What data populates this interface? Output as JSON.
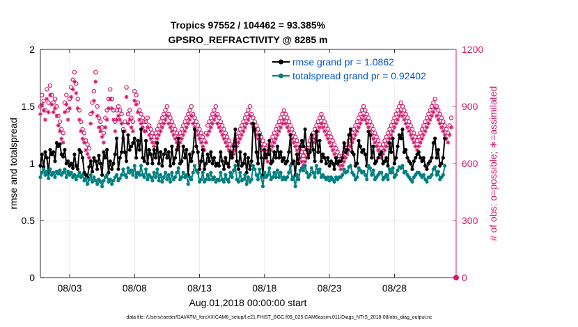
{
  "chart_data": {
    "type": "line",
    "title_line1": "Tropics 97552 / 104462 = 93.385%",
    "title_line2": "GPSRO_REFRACTIVITY @ 8285 m",
    "xlabel": "Aug.01,2018 00:00:00 start",
    "ylabel_left": "rmse and totalspread",
    "ylabel_right": "# of obs: o=possible; ∗=assimilated",
    "footer": "data file: /Users/raeder/DAI/ATM_forcXX/CAM6_setup/f.e21.FHIST_BGC.f09_025.CAM6assim.011/Diags_NTrS_2018-08/obs_diag_output.nc",
    "xlim": [
      0.75,
      32.75
    ],
    "ylim_left": [
      0,
      2
    ],
    "ylim_right": [
      0,
      1200
    ],
    "x_ticks": [
      3,
      8,
      13,
      18,
      23,
      28
    ],
    "x_tick_labels": [
      "08/03",
      "08/08",
      "08/13",
      "08/18",
      "08/23",
      "08/28"
    ],
    "y_ticks_left": [
      0,
      0.5,
      1,
      1.5,
      2
    ],
    "y_tick_labels_left": [
      "0",
      "0.5",
      "1",
      "1.5",
      "2"
    ],
    "y_ticks_right": [
      0,
      300,
      600,
      900,
      1200
    ],
    "y_tick_labels_right": [
      "0",
      "300",
      "600",
      "900",
      "1200"
    ],
    "legend_position": "top-right",
    "colors": {
      "rmse": "#000000",
      "spread": "#008080",
      "obs": "#d6186b",
      "legend_text": "#0055d4",
      "grid": "#e6e6e6"
    },
    "series": [
      {
        "name": "rmse grand pr = 1.0862",
        "axis": "left",
        "values": [
          0.98,
          1.08,
          0.97,
          1.1,
          1.05,
          0.92,
          1.12,
          1.08,
          1.1,
          1.02,
          1.18,
          1.15,
          1.17,
          1.08,
          1.06,
          1.12,
          1.0,
          1.02,
          0.98,
          1.0,
          0.96,
          1.08,
          0.98,
          0.95,
          1.12,
          1.1,
          1.05,
          0.92,
          0.9,
          0.88,
          0.97,
          1.02,
          0.93,
          1.05,
          1.02,
          0.95,
          1.07,
          1.0,
          0.9,
          1.1,
          1.05,
          1.12,
          0.92,
          1.02,
          0.95,
          1.0,
          1.08,
          1.22,
          0.95,
          1.05,
          1.1,
          1.28,
          1.1,
          1.02,
          1.25,
          1.12,
          1.15,
          1.18,
          1.22,
          1.05,
          1.2,
          1.12,
          1.3,
          1.05,
          1.02,
          1.2,
          1.0,
          1.12,
          1.08,
          1.0,
          1.12,
          1.05,
          1.18,
          1.0,
          1.1,
          0.98,
          1.08,
          1.12,
          1.05,
          1.1,
          0.98,
          1.15,
          1.0,
          1.05,
          1.12,
          1.22,
          1.0,
          1.02,
          1.15,
          1.05,
          1.12,
          0.9,
          1.08,
          1.02,
          1.1,
          1.3,
          1.15,
          1.1,
          0.95,
          1.02,
          1.12,
          0.95,
          1.0,
          1.08,
          1.02,
          1.1,
          1.0,
          1.05,
          0.98,
          1.0,
          0.98,
          1.1,
          1.02,
          0.95,
          1.05,
          1.0,
          0.97,
          1.1,
          1.05,
          1.15,
          1.3,
          1.02,
          0.95,
          1.1,
          0.98,
          1.0,
          1.08,
          0.92,
          1.05,
          0.95,
          1.02,
          1.35,
          1.3,
          1.1,
          1.0,
          1.25,
          1.05,
          0.9,
          1.12,
          1.05,
          1.08,
          1.2,
          1.0,
          1.02,
          1.1,
          1.05,
          1.15,
          1.05,
          1.1,
          1.02,
          1.05,
          1.0,
          1.02,
          1.1,
          1.25,
          1.0,
          1.02,
          0.9,
          1.08,
          1.0,
          1.15,
          1.2,
          1.15,
          1.3,
          1.12,
          1.05,
          1.1,
          1.25,
          1.12,
          1.02,
          1.28,
          1.1,
          1.2,
          1.02,
          1.08,
          1.05,
          1.0,
          1.05,
          0.98,
          1.02,
          1.0,
          0.95,
          1.05,
          1.0,
          1.02,
          1.02,
          1.05,
          1.18,
          1.1,
          1.12,
          1.25,
          1.3,
          1.1,
          1.08,
          0.98,
          1.0,
          1.2,
          1.15,
          1.1,
          1.12,
          1.08,
          0.98,
          1.28,
          1.25,
          1.05,
          1.15,
          1.0,
          1.02,
          1.05,
          1.08,
          1.1,
          1.0,
          1.02,
          1.05,
          0.98,
          1.18,
          1.1,
          1.22,
          1.0,
          1.05,
          1.15,
          1.25,
          1.22,
          1.3,
          1.1,
          1.12,
          1.05,
          1.02,
          1.0,
          0.95,
          1.02,
          1.05,
          1.08,
          1.1,
          1.05,
          1.02,
          1.05,
          0.98,
          0.95,
          1.0,
          1.02,
          1.05,
          1.18,
          1.22,
          1.05,
          1.12,
          0.98,
          1.0,
          1.05,
          1.22
        ]
      },
      {
        "name": "totalspread grand pr = 0.92402",
        "axis": "left",
        "values": [
          0.88,
          0.92,
          0.95,
          0.9,
          0.93,
          0.87,
          0.95,
          0.9,
          0.92,
          0.88,
          0.93,
          0.91,
          0.94,
          0.9,
          0.92,
          0.95,
          0.88,
          0.93,
          0.9,
          0.92,
          0.88,
          0.9,
          0.86,
          0.89,
          0.92,
          0.88,
          0.9,
          0.85,
          0.87,
          0.82,
          0.86,
          0.9,
          0.84,
          0.88,
          0.85,
          0.82,
          0.86,
          0.84,
          0.8,
          0.85,
          0.88,
          0.9,
          0.84,
          0.86,
          0.82,
          0.85,
          0.88,
          0.9,
          0.85,
          0.87,
          0.9,
          0.95,
          0.9,
          0.88,
          0.96,
          0.92,
          0.94,
          0.9,
          0.98,
          0.88,
          0.92,
          0.9,
          0.98,
          0.9,
          0.88,
          0.95,
          0.86,
          0.9,
          0.88,
          0.85,
          0.92,
          0.88,
          0.95,
          0.85,
          0.9,
          0.84,
          0.88,
          0.92,
          0.86,
          0.9,
          0.84,
          0.92,
          0.86,
          0.88,
          0.92,
          0.96,
          0.86,
          0.88,
          0.92,
          0.88,
          0.9,
          0.82,
          0.88,
          0.86,
          0.92,
          0.98,
          0.94,
          0.92,
          0.84,
          0.86,
          0.92,
          0.84,
          0.86,
          0.9,
          0.86,
          0.92,
          0.86,
          0.88,
          0.84,
          0.86,
          0.85,
          0.92,
          0.86,
          0.84,
          0.9,
          0.86,
          0.84,
          0.92,
          0.88,
          0.94,
          0.98,
          0.86,
          0.84,
          0.92,
          0.85,
          0.86,
          0.9,
          0.82,
          0.88,
          0.84,
          0.86,
          0.98,
          0.95,
          0.9,
          0.86,
          0.95,
          0.88,
          0.8,
          0.92,
          0.88,
          0.9,
          0.96,
          0.86,
          0.88,
          0.92,
          0.88,
          0.94,
          0.88,
          0.92,
          0.86,
          0.88,
          0.86,
          0.88,
          0.92,
          0.98,
          0.86,
          0.88,
          0.8,
          0.9,
          0.86,
          0.94,
          0.96,
          0.94,
          0.98,
          0.92,
          0.88,
          0.9,
          0.96,
          0.92,
          0.88,
          0.98,
          0.92,
          0.95,
          0.88,
          0.9,
          0.88,
          0.86,
          0.88,
          0.85,
          0.88,
          0.86,
          0.84,
          0.88,
          0.86,
          0.88,
          0.88,
          0.9,
          0.95,
          0.92,
          0.93,
          0.97,
          0.98,
          0.92,
          0.9,
          0.86,
          0.88,
          0.96,
          0.94,
          0.92,
          0.93,
          0.9,
          0.86,
          0.98,
          0.96,
          0.9,
          0.94,
          0.86,
          0.88,
          0.9,
          0.92,
          0.92,
          0.86,
          0.88,
          0.9,
          0.86,
          0.95,
          0.92,
          0.96,
          0.88,
          0.9,
          0.94,
          0.97,
          0.96,
          0.98,
          0.92,
          0.93,
          0.9,
          0.88,
          0.86,
          0.84,
          0.88,
          0.9,
          0.92,
          0.92,
          0.9,
          0.88,
          0.9,
          0.86,
          0.84,
          0.88,
          0.88,
          0.9,
          0.95,
          0.97,
          0.9,
          0.93,
          0.86,
          0.88,
          0.9,
          0.98
        ]
      }
    ],
    "obs_series": [
      {
        "name": "possible (o)",
        "axis": "right",
        "values": [
          900,
          960,
          930,
          880,
          990,
          920,
          1010,
          960,
          920,
          940,
          900,
          850,
          820,
          780,
          760,
          920,
          960,
          880,
          940,
          1000,
          1040,
          1080,
          1020,
          940,
          880,
          820,
          780,
          760,
          720,
          700,
          680,
          860,
          920,
          980,
          1080,
          900,
          840,
          820,
          790,
          760,
          840,
          880,
          940,
          990,
          940,
          880,
          820,
          880,
          900,
          880,
          860,
          780,
          820,
          1000,
          860,
          880,
          840,
          820,
          980,
          960,
          920,
          880,
          860,
          840,
          820,
          820,
          840,
          800,
          780,
          760,
          740,
          760,
          780,
          800,
          820,
          840,
          860,
          880,
          900,
          860,
          840,
          820,
          800,
          780,
          760,
          740,
          760,
          780,
          800,
          820,
          840,
          860,
          880,
          900,
          860,
          840,
          820,
          800,
          780,
          760,
          740,
          720,
          760,
          800,
          820,
          840,
          860,
          880,
          900,
          860,
          840,
          820,
          800,
          780,
          760,
          740,
          720,
          700,
          680,
          700,
          720,
          740,
          760,
          780,
          800,
          820,
          840,
          860,
          880,
          900,
          860,
          840,
          820,
          800,
          780,
          760,
          740,
          720,
          700,
          680,
          660,
          700,
          720,
          740,
          760,
          780,
          800,
          820,
          840,
          860,
          880,
          860,
          840,
          820,
          800,
          780,
          760,
          740,
          720,
          700,
          680,
          660,
          640,
          660,
          680,
          700,
          720,
          740,
          760,
          780,
          800,
          820,
          840,
          860,
          840,
          820,
          800,
          780,
          760,
          740,
          720,
          700,
          680,
          660,
          640,
          620,
          640,
          660,
          680,
          700,
          720,
          740,
          760,
          780,
          800,
          820,
          840,
          860,
          880,
          900,
          880,
          860,
          840,
          820,
          800,
          780,
          760,
          740,
          720,
          700,
          680,
          700,
          720,
          740,
          760,
          780,
          800,
          820,
          840,
          860,
          880,
          900,
          920,
          900,
          880,
          860,
          840,
          820,
          800,
          780,
          760,
          740,
          720,
          740,
          760,
          780,
          800,
          820,
          840,
          860,
          880,
          900,
          920,
          940,
          900,
          880,
          860,
          840,
          820,
          800,
          780,
          760,
          800,
          840
        ]
      },
      {
        "name": "assimilated (*)",
        "axis": "right",
        "values": [
          860,
          910,
          880,
          830,
          940,
          870,
          960,
          910,
          870,
          890,
          850,
          800,
          770,
          730,
          710,
          870,
          910,
          830,
          890,
          950,
          990,
          1030,
          970,
          890,
          830,
          770,
          730,
          710,
          670,
          650,
          630,
          810,
          870,
          930,
          1030,
          850,
          790,
          770,
          740,
          710,
          790,
          830,
          890,
          940,
          890,
          830,
          770,
          830,
          850,
          830,
          810,
          730,
          770,
          950,
          810,
          830,
          790,
          770,
          930,
          910,
          870,
          830,
          810,
          790,
          770,
          770,
          790,
          750,
          730,
          710,
          690,
          710,
          730,
          750,
          770,
          790,
          810,
          830,
          850,
          810,
          790,
          770,
          750,
          730,
          710,
          690,
          710,
          730,
          750,
          770,
          790,
          810,
          830,
          850,
          810,
          790,
          770,
          750,
          730,
          710,
          690,
          670,
          710,
          750,
          770,
          790,
          810,
          830,
          850,
          810,
          790,
          770,
          750,
          730,
          710,
          690,
          670,
          650,
          630,
          650,
          670,
          690,
          710,
          730,
          750,
          770,
          790,
          810,
          830,
          850,
          810,
          790,
          770,
          750,
          730,
          710,
          690,
          670,
          650,
          630,
          610,
          650,
          670,
          690,
          710,
          730,
          750,
          770,
          790,
          810,
          830,
          810,
          790,
          770,
          750,
          730,
          710,
          690,
          670,
          650,
          630,
          610,
          590,
          610,
          630,
          650,
          670,
          690,
          710,
          730,
          750,
          770,
          790,
          810,
          790,
          770,
          750,
          730,
          710,
          690,
          670,
          650,
          630,
          610,
          590,
          570,
          590,
          610,
          630,
          650,
          670,
          690,
          710,
          730,
          750,
          770,
          790,
          810,
          830,
          850,
          830,
          810,
          790,
          770,
          750,
          730,
          710,
          690,
          670,
          650,
          630,
          650,
          670,
          690,
          710,
          730,
          750,
          770,
          790,
          810,
          830,
          850,
          870,
          850,
          830,
          810,
          790,
          770,
          750,
          730,
          710,
          690,
          670,
          690,
          710,
          730,
          750,
          770,
          790,
          810,
          830,
          850,
          870,
          890,
          850,
          830,
          810,
          790,
          770,
          750,
          730,
          710,
          750,
          790
        ]
      }
    ],
    "obs_point_at_axis": {
      "x": 32.75,
      "y": 0
    }
  }
}
